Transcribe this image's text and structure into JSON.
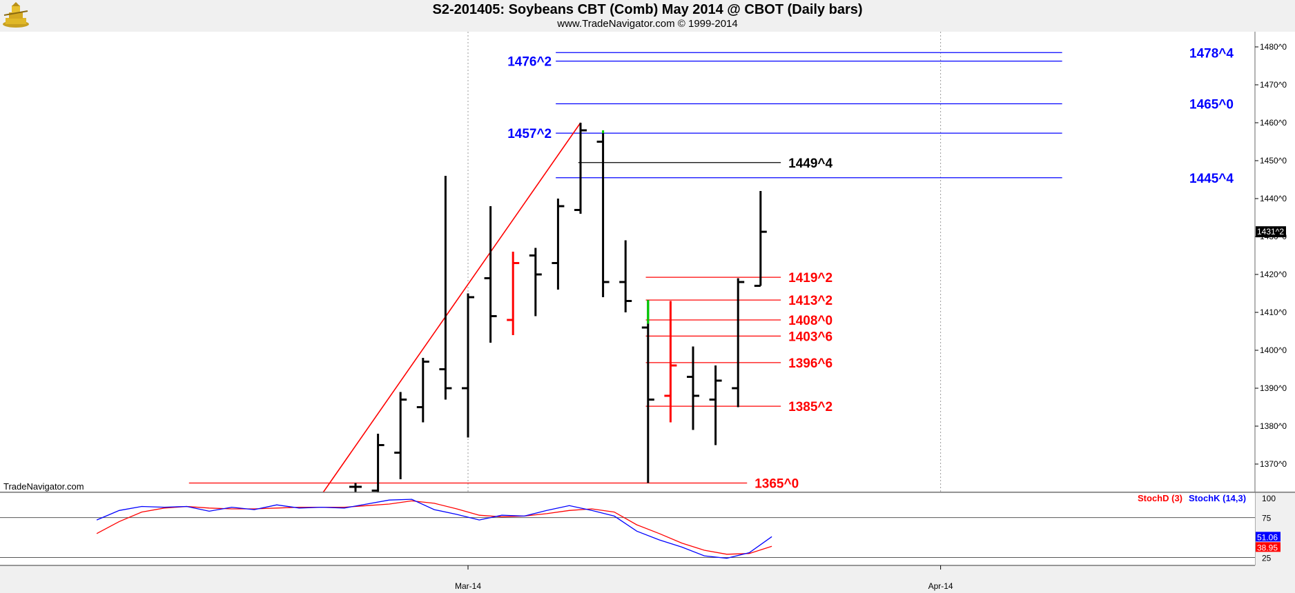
{
  "header": {
    "title": "S2-201405:  Soybeans CBT (Comb) May 2014 @ CBOT  (Daily bars)",
    "subtitle": "www.TradeNavigator.com © 1999-2014",
    "watermark": "TradeNavigator.com"
  },
  "chart_data": {
    "type": "ohlc",
    "title": "S2-201405:  Soybeans CBT (Comb) May 2014 @ CBOT  (Daily bars)",
    "price_axis": {
      "min": 1362,
      "max": 1484,
      "ticks": [
        1480,
        1470,
        1460,
        1450,
        1440,
        1430,
        1420,
        1410,
        1400,
        1390,
        1380,
        1370
      ],
      "tick_labels": [
        "1480^0",
        "1470^0",
        "1460^0",
        "1450^0",
        "1440^0",
        "1430^0",
        "1420^0",
        "1410^0",
        "1400^0",
        "1390^0",
        "1380^0",
        "1370^0"
      ],
      "last_price_label": "1431^2",
      "last_price": 1431.25
    },
    "x_axis": {
      "labels": [
        {
          "label": "Mar-14",
          "x": 0
        },
        {
          "label": "Apr-14",
          "x": 21
        }
      ]
    },
    "bars": [
      {
        "x": -5,
        "high": 1365,
        "low": 1362,
        "open": 1364,
        "close": 1364,
        "color": "#000000"
      },
      {
        "x": -4,
        "high": 1378,
        "low": 1362,
        "open": 1363,
        "close": 1375,
        "color": "#000000"
      },
      {
        "x": -3,
        "high": 1389,
        "low": 1366,
        "open": 1373,
        "close": 1387,
        "color": "#000000"
      },
      {
        "x": -2,
        "high": 1398,
        "low": 1381,
        "open": 1385,
        "close": 1397,
        "color": "#000000"
      },
      {
        "x": -1,
        "high": 1446,
        "low": 1387,
        "open": 1395,
        "close": 1390,
        "color": "#000000"
      },
      {
        "x": 0,
        "high": 1415,
        "low": 1377,
        "open": 1390,
        "close": 1414,
        "color": "#000000"
      },
      {
        "x": 1,
        "high": 1438,
        "low": 1402,
        "open": 1419,
        "close": 1409,
        "color": "#000000"
      },
      {
        "x": 2,
        "high": 1426,
        "low": 1404,
        "open": 1408,
        "close": 1423,
        "color": "#ff0000"
      },
      {
        "x": 3,
        "high": 1427,
        "low": 1409,
        "open": 1425,
        "close": 1420,
        "color": "#000000"
      },
      {
        "x": 4,
        "high": 1440,
        "low": 1416,
        "open": 1423,
        "close": 1438,
        "color": "#000000"
      },
      {
        "x": 5,
        "high": 1460,
        "low": 1436,
        "open": 1437,
        "close": 1458,
        "color": "#000000"
      },
      {
        "x": 6,
        "high": 1457.25,
        "low": 1414,
        "open": 1455,
        "close": 1418,
        "color": "#000000"
      },
      {
        "x": 7,
        "high": 1429,
        "low": 1410,
        "open": 1418,
        "close": 1413,
        "color": "#000000"
      },
      {
        "x": 8,
        "high": 1413.25,
        "low": 1365,
        "open": 1406,
        "close": 1387,
        "color": "#000000"
      },
      {
        "x": 9,
        "high": 1413,
        "low": 1381,
        "open": 1388,
        "close": 1396,
        "color": "#ff0000"
      },
      {
        "x": 10,
        "high": 1401,
        "low": 1379,
        "open": 1393,
        "close": 1388,
        "color": "#000000"
      },
      {
        "x": 11,
        "high": 1396,
        "low": 1375,
        "open": 1387,
        "close": 1392,
        "color": "#000000"
      },
      {
        "x": 12,
        "high": 1419,
        "low": 1385,
        "open": 1390,
        "close": 1418,
        "color": "#000000"
      },
      {
        "x": 13,
        "high": 1442,
        "low": 1417,
        "open": 1417,
        "close": 1431.25,
        "color": "#000000"
      }
    ],
    "gap_markers": [
      {
        "x": 6,
        "from": 1457.25,
        "to": 1458,
        "color": "#00cc00"
      },
      {
        "x": 8,
        "from": 1407,
        "to": 1413.25,
        "color": "#00cc00"
      }
    ],
    "trendlines": [
      {
        "x1": -6.5,
        "y1": 1362,
        "x2": 5,
        "y2": 1460,
        "color": "#ff0000"
      }
    ],
    "levels": [
      {
        "label": "1478^4",
        "value": 1478.5,
        "color": "#0000ff",
        "x_start": 3.9,
        "x_end": 26.4,
        "label_side": "right"
      },
      {
        "label": "1476^2",
        "value": 1476.25,
        "color": "#0000ff",
        "x_start": 3.9,
        "x_end": 26.4,
        "label_side": "left"
      },
      {
        "label": "1465^0",
        "value": 1465,
        "color": "#0000ff",
        "x_start": 3.9,
        "x_end": 26.4,
        "label_side": "right"
      },
      {
        "label": "1457^2",
        "value": 1457.25,
        "color": "#0000ff",
        "x_start": 3.9,
        "x_end": 26.4,
        "label_side": "left"
      },
      {
        "label": "1449^4",
        "value": 1449.5,
        "color": "#000000",
        "x_start": 4.9,
        "x_end": 13.9,
        "label_side": "right"
      },
      {
        "label": "1445^4",
        "value": 1445.5,
        "color": "#0000ff",
        "x_start": 3.9,
        "x_end": 26.4,
        "label_side": "right"
      },
      {
        "label": "1419^2",
        "value": 1419.25,
        "color": "#ff0000",
        "x_start": 7.9,
        "x_end": 13.9,
        "label_side": "right"
      },
      {
        "label": "1413^2",
        "value": 1413.25,
        "color": "#ff0000",
        "x_start": 7.9,
        "x_end": 13.9,
        "label_side": "right"
      },
      {
        "label": "1408^0",
        "value": 1408,
        "color": "#ff0000",
        "x_start": 7.9,
        "x_end": 13.9,
        "label_side": "right"
      },
      {
        "label": "1403^6",
        "value": 1403.75,
        "color": "#ff0000",
        "x_start": 7.9,
        "x_end": 13.9,
        "label_side": "right"
      },
      {
        "label": "1396^6",
        "value": 1396.75,
        "color": "#ff0000",
        "x_start": 7.9,
        "x_end": 13.9,
        "label_side": "right"
      },
      {
        "label": "1385^2",
        "value": 1385.25,
        "color": "#ff0000",
        "x_start": 7.9,
        "x_end": 13.9,
        "label_side": "right"
      },
      {
        "label": "1365^0",
        "value": 1365,
        "color": "#ff0000",
        "x_start": -12.4,
        "x_end": 12.4,
        "label_side": "right"
      }
    ],
    "stochastic": {
      "axis": {
        "min": 15,
        "max": 105,
        "ticks": [
          100,
          75,
          25
        ],
        "tick_labels": [
          "100",
          "75",
          "25"
        ]
      },
      "legend": [
        {
          "label": "StochD (3)",
          "color": "#ff0000"
        },
        {
          "label": "StochK (14,3)",
          "color": "#0000ff"
        }
      ],
      "k": {
        "color": "#0000ff",
        "last_label": "51.06",
        "points": [
          [
            -16.5,
            72
          ],
          [
            -15.5,
            84
          ],
          [
            -14.5,
            89
          ],
          [
            -13.5,
            88
          ],
          [
            -12.5,
            89
          ],
          [
            -11.5,
            83
          ],
          [
            -10.5,
            88
          ],
          [
            -9.5,
            85
          ],
          [
            -8.5,
            91
          ],
          [
            -7.5,
            87
          ],
          [
            -6.5,
            88
          ],
          [
            -5.5,
            87
          ],
          [
            -4.5,
            92
          ],
          [
            -3.5,
            97
          ],
          [
            -2.5,
            98
          ],
          [
            -1.5,
            85
          ],
          [
            -0.5,
            79
          ],
          [
            0.5,
            72
          ],
          [
            1.5,
            78
          ],
          [
            2.5,
            77
          ],
          [
            3.5,
            84
          ],
          [
            4.5,
            90
          ],
          [
            5.5,
            84
          ],
          [
            6.5,
            77
          ],
          [
            7.5,
            58
          ],
          [
            8.5,
            47
          ],
          [
            9.5,
            38
          ],
          [
            10.5,
            27
          ],
          [
            11.5,
            24
          ],
          [
            12.5,
            31
          ],
          [
            13.5,
            51.06
          ]
        ]
      },
      "d": {
        "color": "#ff0000",
        "last_label": "38.95",
        "points": [
          [
            -16.5,
            55
          ],
          [
            -15.5,
            70
          ],
          [
            -14.5,
            82
          ],
          [
            -13.5,
            87
          ],
          [
            -12.5,
            89
          ],
          [
            -11.5,
            87
          ],
          [
            -10.5,
            86
          ],
          [
            -9.5,
            86
          ],
          [
            -8.5,
            87
          ],
          [
            -7.5,
            88
          ],
          [
            -6.5,
            88
          ],
          [
            -5.5,
            88
          ],
          [
            -4.5,
            90
          ],
          [
            -3.5,
            92
          ],
          [
            -2.5,
            96
          ],
          [
            -1.5,
            93
          ],
          [
            -0.5,
            86
          ],
          [
            0.5,
            78
          ],
          [
            1.5,
            76
          ],
          [
            2.5,
            77
          ],
          [
            3.5,
            80
          ],
          [
            4.5,
            84
          ],
          [
            5.5,
            86
          ],
          [
            6.5,
            82
          ],
          [
            7.5,
            66
          ],
          [
            8.5,
            55
          ],
          [
            9.5,
            43
          ],
          [
            10.5,
            34
          ],
          [
            11.5,
            29
          ],
          [
            12.5,
            30
          ],
          [
            13.5,
            38.95
          ]
        ]
      }
    }
  }
}
